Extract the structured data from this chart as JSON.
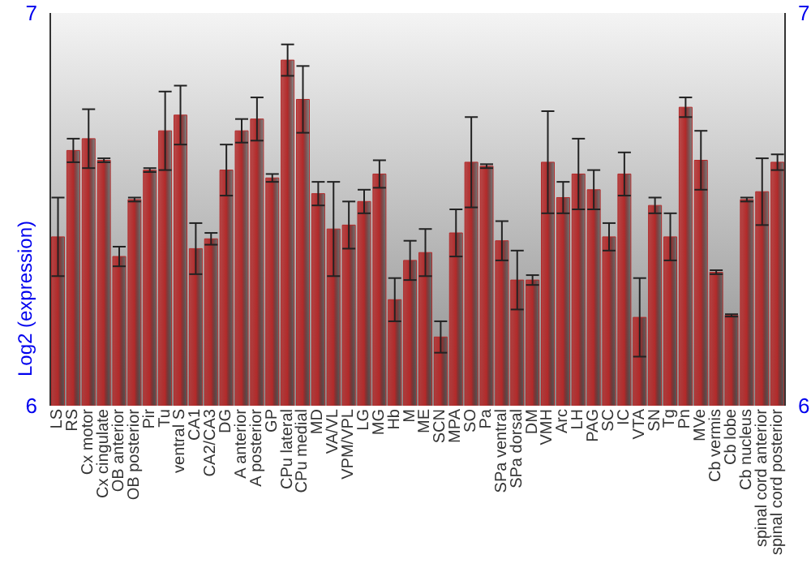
{
  "chart_data": {
    "type": "bar",
    "ylabel": "Log2 (expression)",
    "categories": [
      "LS",
      "RS",
      "Cx motor",
      "Cx cingulate",
      "OB anterior",
      "OB posterior",
      "Pir",
      "Tu",
      "ventral S",
      "CA1",
      "CA2/CA3",
      "DG",
      "A anterior",
      "A posterior",
      "GP",
      "CPu lateral",
      "CPu medial",
      "MD",
      "VA/VL",
      "VPM/VPL",
      "LG",
      "MG",
      "Hb",
      "M",
      "ME",
      "SCN",
      "MPA",
      "SO",
      "Pa",
      "SPa ventral",
      "SPa dorsal",
      "DM",
      "VMH",
      "Arc",
      "LH",
      "PAG",
      "SC",
      "IC",
      "VTA",
      "SN",
      "Tg",
      "Pn",
      "MVe",
      "Cb vermis",
      "Cb lobe",
      "Cb nucleus",
      "spinal cord anterior",
      "spinal cord posterior"
    ],
    "values": [
      6.43,
      6.65,
      6.68,
      6.625,
      6.38,
      6.525,
      6.6,
      6.7,
      6.74,
      6.4,
      6.425,
      6.6,
      6.7,
      6.73,
      6.58,
      6.88,
      6.78,
      6.54,
      6.45,
      6.46,
      6.52,
      6.59,
      6.27,
      6.37,
      6.39,
      6.175,
      6.44,
      6.62,
      6.61,
      6.42,
      6.32,
      6.32,
      6.62,
      6.53,
      6.59,
      6.55,
      6.43,
      6.59,
      6.225,
      6.51,
      6.43,
      6.76,
      6.625,
      6.34,
      6.23,
      6.525,
      6.545,
      6.62
    ],
    "errors": [
      0.1,
      0.03,
      0.075,
      0.005,
      0.025,
      0.005,
      0.005,
      0.1,
      0.075,
      0.065,
      0.015,
      0.065,
      0.03,
      0.055,
      0.01,
      0.04,
      0.085,
      0.03,
      0.12,
      0.06,
      0.03,
      0.035,
      0.055,
      0.05,
      0.06,
      0.04,
      0.06,
      0.115,
      0.005,
      0.05,
      0.075,
      0.0125,
      0.13,
      0.04,
      0.09,
      0.05,
      0.035,
      0.055,
      0.1,
      0.02,
      0.06,
      0.025,
      0.075,
      0.005,
      0.003,
      0.005,
      0.085,
      0.02
    ],
    "color": "#b22a2a",
    "ylim": [
      6,
      7
    ],
    "yticks": [
      6,
      7
    ],
    "y2lim": [
      6,
      7
    ],
    "y2ticks": [
      6,
      7
    ],
    "grid": false
  }
}
